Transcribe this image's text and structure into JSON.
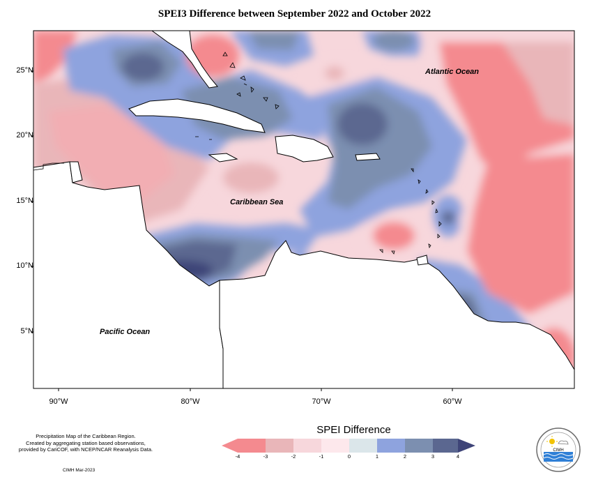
{
  "title": "SPEI3 Difference between September 2022 and October 2022",
  "map_labels": {
    "atlantic": "Atlantic Ocean",
    "caribbean": "Caribbean Sea",
    "pacific": "Pacific Ocean"
  },
  "lat_ticks": [
    "25°N",
    "20°N",
    "15°N",
    "10°N",
    "5°N"
  ],
  "lon_ticks": [
    "90°W",
    "80°W",
    "70°W",
    "60°W"
  ],
  "legend": {
    "title": "SPEI Difference",
    "ticks": [
      "-4",
      "-3",
      "-2",
      "-1",
      "0",
      "1",
      "2",
      "3",
      "4"
    ],
    "colors": [
      "#f48a8f",
      "#e9b6b9",
      "#f7d7dc",
      "#fde8ec",
      "#dbe6ea",
      "#8ea3de",
      "#7c8fb0",
      "#5b6790"
    ]
  },
  "footnote": [
    "Precipitation Map of the Caribbean Region.",
    "Created by aggregating station based observations,",
    "provided by CariCOF, with NCEP/NCAR Reanalysis Data."
  ],
  "credit": "CIMH Mar-2023",
  "logo_text": "CIMH"
}
